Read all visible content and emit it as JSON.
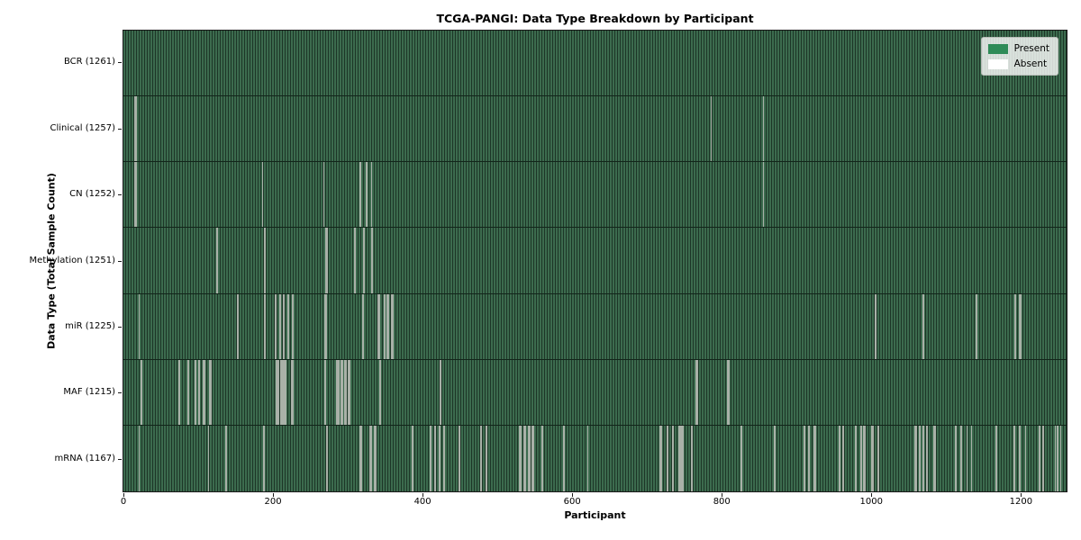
{
  "chart_data": {
    "type": "heatmap",
    "title": "TCGA-PANGI: Data Type Breakdown by Participant",
    "xlabel": "Participant",
    "ylabel": "Data Type (Total Sample Count)",
    "x_axis": {
      "min": 0,
      "max": 1261,
      "ticks": [
        0,
        200,
        400,
        600,
        800,
        1000,
        1200
      ]
    },
    "legend": {
      "position": "upper right",
      "entries": [
        {
          "label": "Present",
          "color": "#2e8b57"
        },
        {
          "label": "Absent",
          "color": "#ffffff"
        }
      ]
    },
    "colors": {
      "present_fill": "#2e8b57",
      "bar_edge_dark": "#1d3627",
      "bar_face_light": "#3c6b4e",
      "absent_stripe": "#a9b1a8"
    },
    "total_participants": 1261,
    "rows": [
      {
        "data_type": "BCR",
        "sample_count": 1261,
        "label": "BCR (1261)",
        "absent_participants": []
      },
      {
        "data_type": "Clinical",
        "sample_count": 1257,
        "label": "Clinical (1257)",
        "absent_participants": [
          15,
          16,
          785,
          855
        ]
      },
      {
        "data_type": "CN",
        "sample_count": 1252,
        "label": "CN (1252)",
        "absent_participants": [
          15,
          16,
          185,
          267,
          315,
          316,
          324,
          331,
          855
        ]
      },
      {
        "data_type": "Methylation",
        "sample_count": 1251,
        "label": "Methylation (1251)",
        "absent_participants": [
          124,
          188,
          270,
          271,
          308,
          309,
          320,
          321,
          331,
          332
        ]
      },
      {
        "data_type": "miR",
        "sample_count": 1225,
        "label": "miR (1225)",
        "absent_participants": [
          20,
          152,
          188,
          202,
          203,
          208,
          209,
          213,
          214,
          219,
          220,
          225,
          226,
          269,
          270,
          319,
          320,
          340,
          341,
          348,
          349,
          352,
          353,
          358,
          359,
          1004,
          1005,
          1068,
          1069,
          1139,
          1140,
          1191,
          1192,
          1197,
          1198,
          1199
        ]
      },
      {
        "data_type": "MAF",
        "sample_count": 1215,
        "label": "MAF (1215)",
        "absent_participants": [
          23,
          74,
          85,
          86,
          95,
          96,
          100,
          106,
          107,
          108,
          115,
          116,
          204,
          205,
          206,
          207,
          210,
          211,
          212,
          214,
          215,
          216,
          224,
          225,
          226,
          269,
          284,
          285,
          286,
          287,
          290,
          291,
          292,
          295,
          296,
          297,
          300,
          301,
          302,
          342,
          423,
          765,
          766,
          807,
          808,
          809
        ]
      },
      {
        "data_type": "mRNA",
        "sample_count": 1167,
        "label": "mRNA (1167)",
        "absent_participants": [
          20,
          113,
          136,
          187,
          271,
          316,
          317,
          329,
          330,
          335,
          336,
          386,
          409,
          410,
          415,
          416,
          421,
          422,
          427,
          428,
          448,
          477,
          478,
          484,
          485,
          529,
          530,
          535,
          536,
          541,
          542,
          546,
          547,
          559,
          588,
          620,
          717,
          718,
          726,
          727,
          733,
          734,
          742,
          743,
          746,
          747,
          759,
          825,
          870,
          909,
          910,
          915,
          916,
          923,
          924,
          956,
          957,
          961,
          962,
          978,
          979,
          985,
          986,
          989,
          990,
          1000,
          1001,
          1008,
          1009,
          1058,
          1059,
          1063,
          1064,
          1068,
          1069,
          1073,
          1074,
          1083,
          1084,
          1112,
          1119,
          1127,
          1133,
          1166,
          1190,
          1191,
          1197,
          1198,
          1205,
          1224,
          1229,
          1245,
          1248,
          1252
        ]
      }
    ]
  }
}
